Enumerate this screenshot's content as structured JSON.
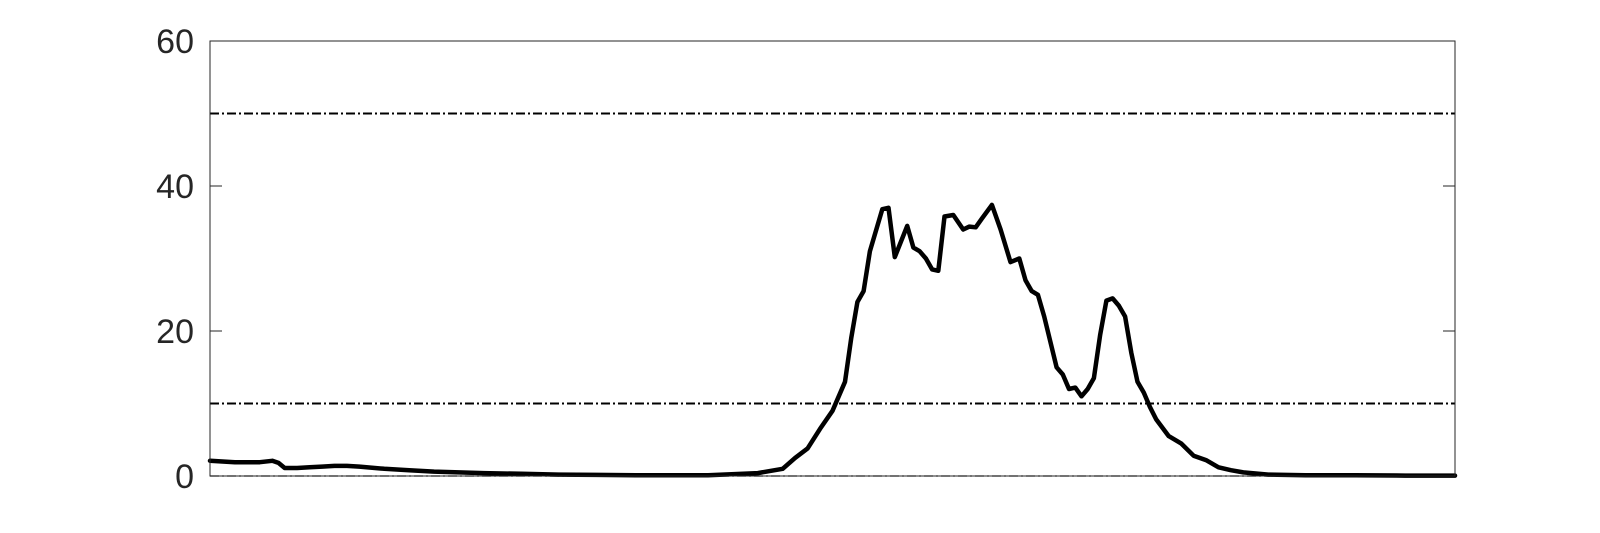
{
  "chart_data": {
    "type": "line",
    "title": "",
    "xlabel": "",
    "ylabel": "",
    "xlim": [
      0,
      100
    ],
    "ylim": [
      0,
      60
    ],
    "y_ticks": [
      {
        "value": 0,
        "label": "0"
      },
      {
        "value": 20,
        "label": "20"
      },
      {
        "value": 40,
        "label": "40"
      },
      {
        "value": 60,
        "label": "60"
      }
    ],
    "x_tick_labels_shown": false,
    "grid": false,
    "box": true,
    "reference_lines": [
      {
        "y": 50,
        "style": "dash-dot"
      },
      {
        "y": 10,
        "style": "dash-dot"
      },
      {
        "y": 0,
        "style": "dash-dot"
      }
    ],
    "series": [
      {
        "color": "#000000",
        "x": [
          0,
          1,
          2,
          3,
          4,
          5,
          5.5,
          6,
          7,
          8,
          9,
          10,
          11,
          12,
          14,
          16,
          18,
          20,
          22,
          25,
          28,
          31,
          35,
          40,
          44,
          46,
          47,
          48,
          49,
          50,
          51,
          51.5,
          52,
          52.5,
          53,
          54,
          54.5,
          55,
          56,
          56.5,
          57,
          57.5,
          58,
          58.5,
          59,
          59.7,
          60.5,
          61,
          61.5,
          62,
          62.8,
          63.5,
          64.3,
          65,
          65.5,
          66,
          66.5,
          67,
          67.5,
          68,
          68.5,
          69,
          69.5,
          70,
          70.5,
          71,
          71.5,
          72,
          72.5,
          73,
          73.5,
          74,
          74.5,
          75,
          75.5,
          76,
          77,
          78,
          79,
          80,
          81,
          82,
          83,
          85,
          88,
          92,
          96,
          100
        ],
        "y": [
          2.1,
          2.0,
          1.9,
          1.9,
          1.9,
          2.1,
          1.8,
          1.1,
          1.1,
          1.2,
          1.3,
          1.4,
          1.4,
          1.3,
          1.0,
          0.8,
          0.6,
          0.5,
          0.4,
          0.3,
          0.2,
          0.15,
          0.1,
          0.1,
          0.4,
          1.0,
          2.5,
          3.8,
          6.5,
          9.0,
          13.0,
          19.0,
          24.0,
          25.5,
          31.0,
          36.8,
          37.0,
          30.2,
          34.5,
          31.5,
          31.0,
          30.0,
          28.5,
          28.3,
          35.8,
          36.0,
          34.0,
          34.4,
          34.3,
          35.5,
          37.4,
          34.0,
          29.5,
          30.0,
          27.0,
          25.5,
          25.0,
          22.0,
          18.5,
          15.0,
          14.0,
          12.0,
          12.2,
          11.0,
          12.0,
          13.5,
          19.5,
          24.2,
          24.5,
          23.5,
          22.0,
          17.0,
          13.0,
          11.5,
          9.5,
          7.8,
          5.5,
          4.5,
          2.8,
          2.2,
          1.2,
          0.8,
          0.5,
          0.2,
          0.1,
          0.1,
          0.05,
          0.05
        ]
      }
    ]
  }
}
